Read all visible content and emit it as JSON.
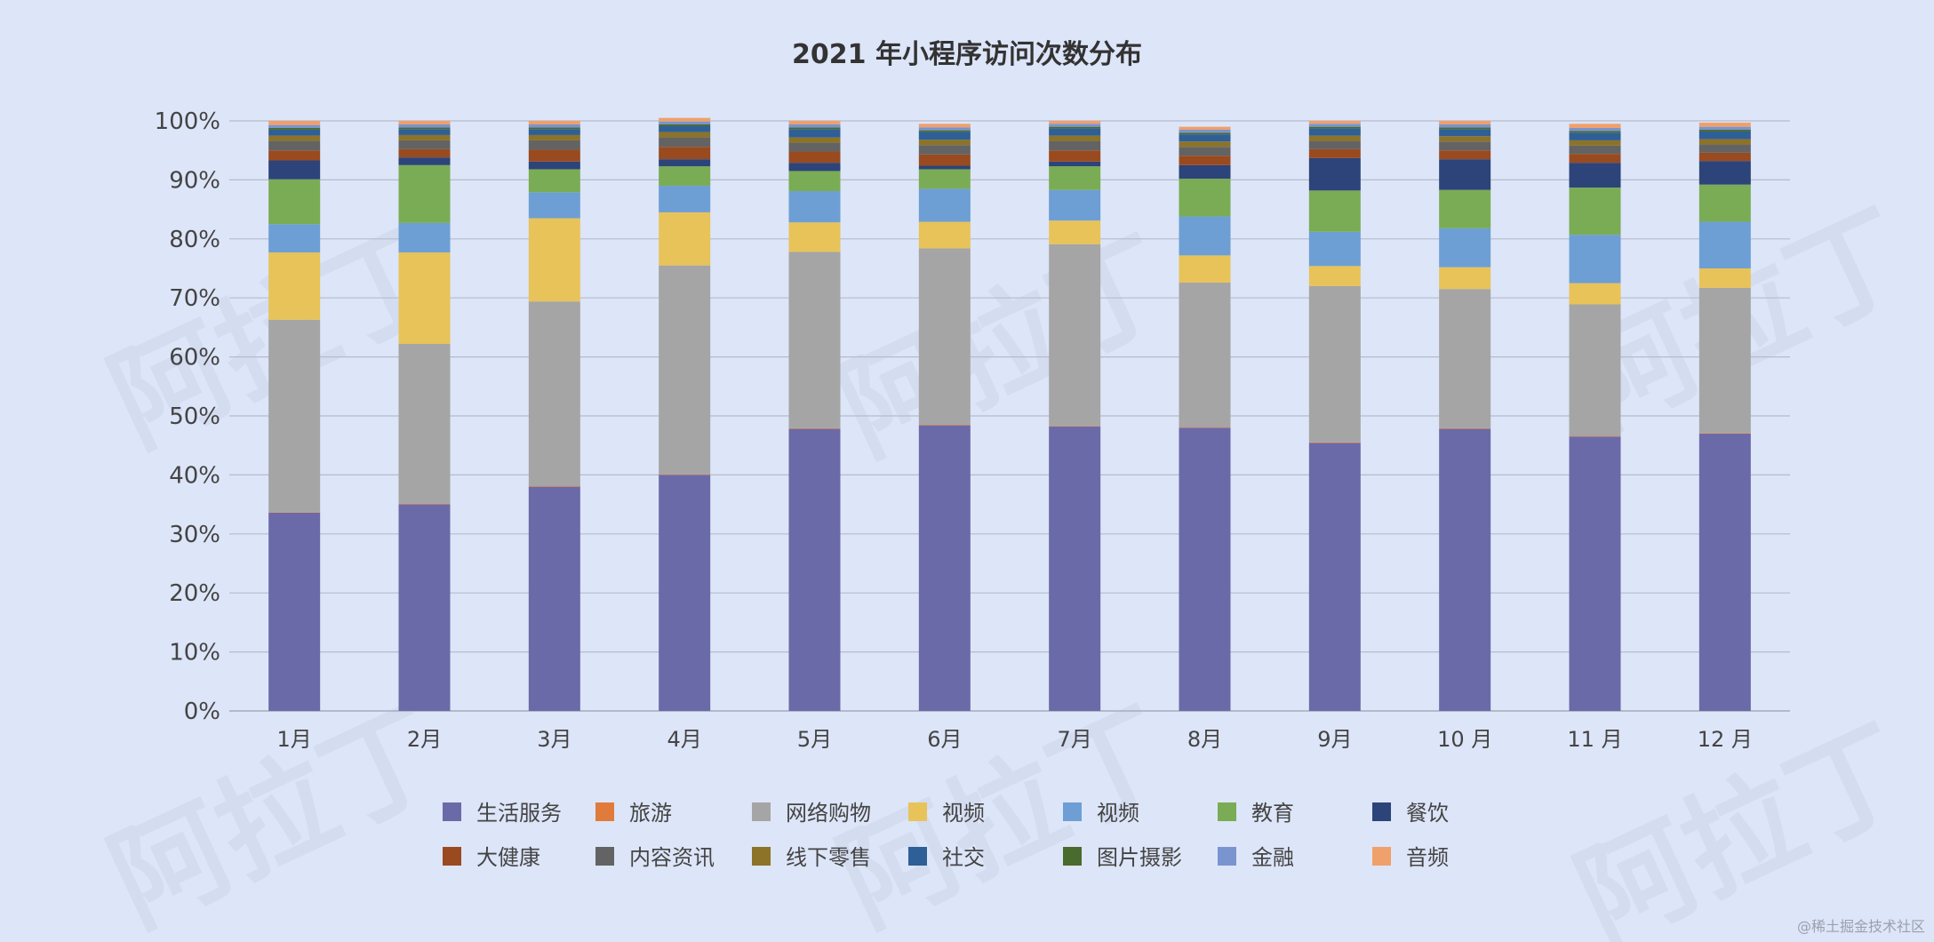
{
  "chart_data": {
    "type": "bar",
    "stacked": true,
    "title": "2021 年小程序访问次数分布",
    "xlabel": "",
    "ylabel": "",
    "ylim": [
      0,
      100
    ],
    "yticks": [
      "0%",
      "10%",
      "20%",
      "30%",
      "40%",
      "50%",
      "60%",
      "70%",
      "80%",
      "90%",
      "100%"
    ],
    "grid": true,
    "legend_position": "bottom",
    "categories": [
      "1月",
      "2月",
      "3月",
      "4月",
      "5月",
      "6月",
      "7月",
      "8月",
      "9月",
      "10 月",
      "11 月",
      "12 月"
    ],
    "series": [
      {
        "name": "生活服务",
        "color": "#6b6aa8",
        "values": [
          33.6,
          35,
          38,
          40,
          47.8,
          48.4,
          48.2,
          48,
          45.4,
          47.8,
          46.5,
          47
        ]
      },
      {
        "name": "旅游",
        "color": "#e07b3c",
        "values": [
          0.1,
          0.1,
          0.1,
          0.1,
          0.1,
          0.1,
          0.1,
          0.1,
          0.1,
          0.1,
          0.1,
          0.1
        ]
      },
      {
        "name": "网络购物",
        "color": "#a5a5a5",
        "values": [
          32.6,
          27.1,
          31.3,
          35.4,
          29.9,
          29.9,
          30.8,
          24.5,
          26.5,
          23.6,
          22.3,
          24.6
        ]
      },
      {
        "name": "视频",
        "color": "#e8c35a",
        "values": [
          11.4,
          15.5,
          14.1,
          9.0,
          5.0,
          4.5,
          4.0,
          4.6,
          3.4,
          3.7,
          3.6,
          3.3
        ]
      },
      {
        "name": "视频",
        "color": "#6d9fd4",
        "values": [
          4.8,
          5.0,
          4.4,
          4.5,
          5.3,
          5.6,
          5.2,
          6.6,
          5.8,
          6.6,
          8.2,
          7.9
        ]
      },
      {
        "name": "教育",
        "color": "#7aac55",
        "values": [
          7.6,
          9.8,
          3.9,
          3.3,
          3.4,
          3.3,
          4.0,
          6.4,
          7.0,
          6.5,
          8.0,
          6.3
        ]
      },
      {
        "name": "餐饮",
        "color": "#2c4479",
        "values": [
          3.2,
          1.3,
          1.3,
          1.2,
          1.4,
          0.6,
          0.8,
          2.3,
          5.5,
          5.2,
          4.2,
          4.0
        ]
      },
      {
        "name": "大健康",
        "color": "#9a4a1f",
        "values": [
          1.7,
          1.4,
          2.0,
          2.1,
          1.9,
          1.9,
          1.9,
          1.6,
          1.5,
          1.5,
          1.5,
          1.4
        ]
      },
      {
        "name": "内容资讯",
        "color": "#636363",
        "values": [
          1.6,
          1.5,
          1.6,
          1.6,
          1.5,
          1.6,
          1.6,
          1.5,
          1.4,
          1.5,
          1.4,
          1.4
        ]
      },
      {
        "name": "线下零售",
        "color": "#8c7327",
        "values": [
          0.9,
          0.9,
          0.9,
          0.9,
          0.9,
          0.9,
          0.9,
          0.9,
          0.9,
          0.9,
          0.9,
          0.9
        ]
      },
      {
        "name": "社交",
        "color": "#2e5f96",
        "values": [
          1.0,
          1.0,
          1.0,
          1.0,
          1.4,
          1.3,
          1.2,
          1.2,
          1.2,
          1.2,
          1.3,
          1.3
        ]
      },
      {
        "name": "图片摄影",
        "color": "#4a6b2e",
        "values": [
          0.3,
          0.3,
          0.3,
          0.3,
          0.3,
          0.3,
          0.3,
          0.3,
          0.3,
          0.3,
          0.3,
          0.3
        ]
      },
      {
        "name": "金融",
        "color": "#7a94d0",
        "values": [
          0.5,
          0.5,
          0.5,
          0.5,
          0.5,
          0.5,
          0.5,
          0.5,
          0.5,
          0.5,
          0.5,
          0.5
        ]
      },
      {
        "name": "音频",
        "color": "#f0a06a",
        "values": [
          0.7,
          0.6,
          0.6,
          0.6,
          0.6,
          0.6,
          0.5,
          0.5,
          0.5,
          0.6,
          0.7,
          0.7
        ]
      }
    ]
  },
  "watermark": {
    "brand": "阿拉丁",
    "footer": "@稀土掘金技术社区"
  }
}
